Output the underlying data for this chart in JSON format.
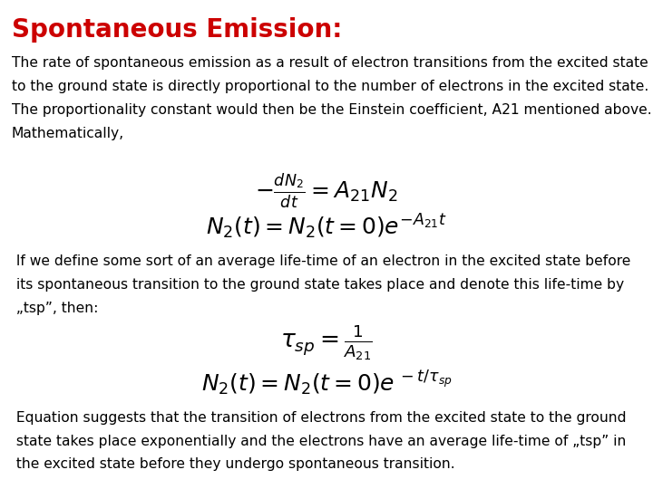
{
  "title": "Spontaneous Emission:",
  "title_color": "#cc0000",
  "title_fontsize": 20,
  "background_color": "#ffffff",
  "text_color": "#000000",
  "para1_line1": "The rate of spontaneous emission as a result of electron transitions from the excited state",
  "para1_line2": "to the ground state is directly proportional to the number of electrons in the excited state.",
  "para1_line3": "The proportionality constant would then be the Einstein coefficient, A21 mentioned above.",
  "para1_line4": "Mathematically,",
  "para2_line1": " If we define some sort of an average life-time of an electron in the excited state before",
  "para2_line2": " its spontaneous transition to the ground state takes place and denote this life-time by",
  "para2_line3": " „tsp”, then:",
  "para3_line1": " Equation suggests that the transition of electrons from the excited state to the ground",
  "para3_line2": " state takes place exponentially and the electrons have an average life-time of „tsp” in",
  "para3_line3": " the excited state before they undergo spontaneous transition.",
  "text_fontsize": 11.2,
  "eq_fontsize": 15
}
